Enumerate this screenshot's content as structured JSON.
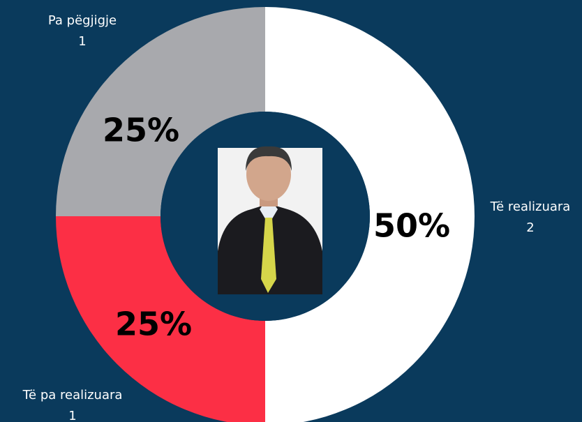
{
  "chart_data": {
    "type": "donut",
    "categories": [
      "Të realizuara",
      "Të pa realizuara",
      "Pa pëgjigje"
    ],
    "values": [
      50,
      25,
      25
    ],
    "value_labels": [
      "50%",
      "25%",
      "25%"
    ],
    "counts": [
      2,
      1,
      1
    ],
    "colors": [
      "#ffffff",
      "#fc2f45",
      "#a8a9ad"
    ]
  }
}
